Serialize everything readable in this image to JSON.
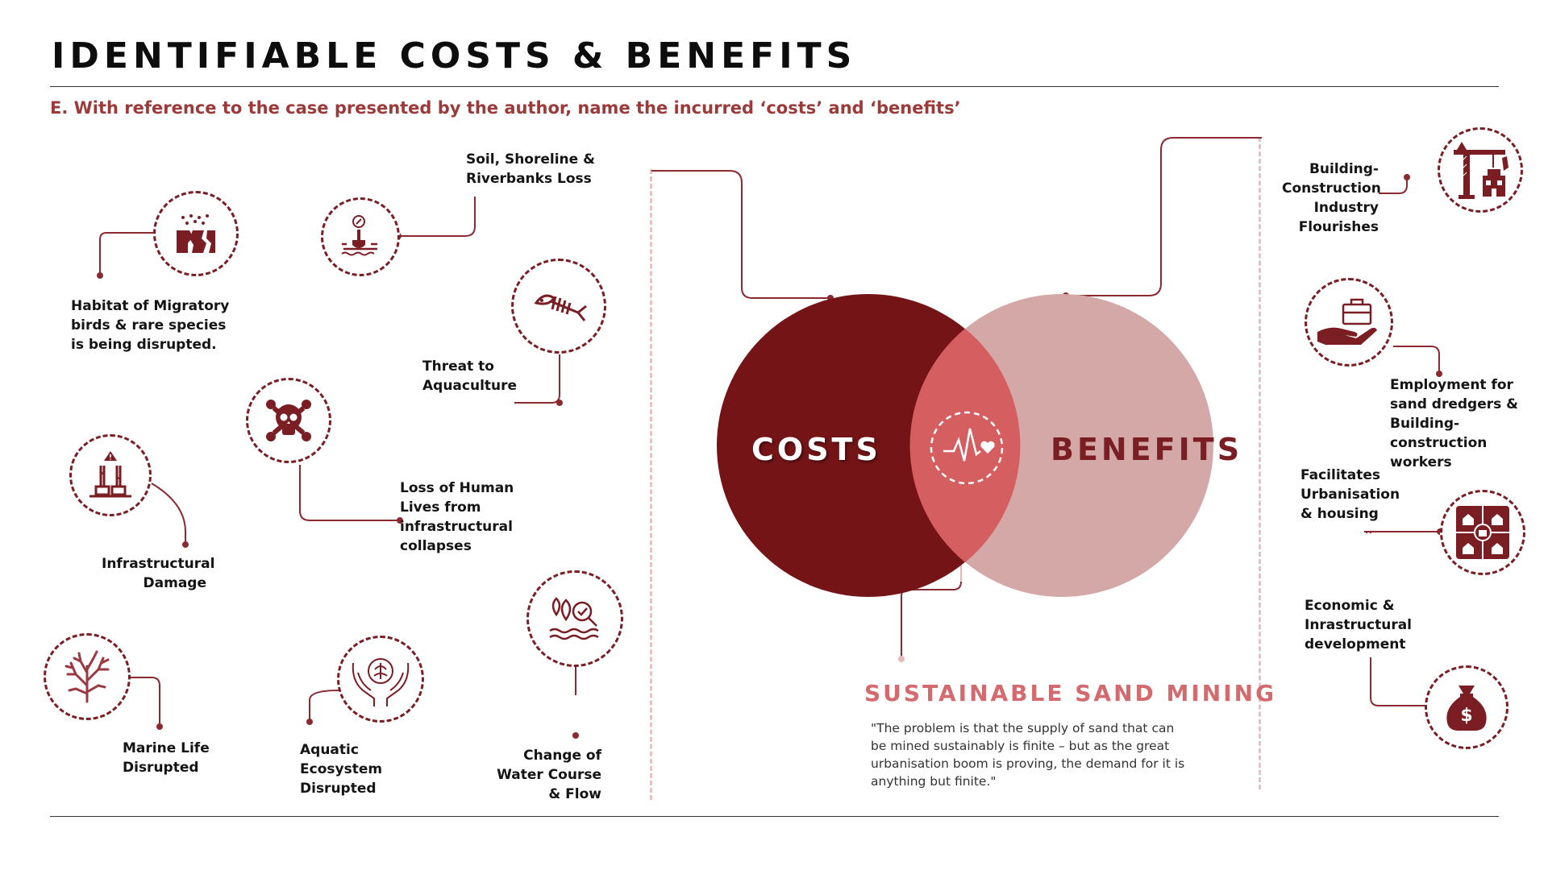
{
  "header": {
    "title": "IDENTIFIABLE COSTS & BENEFITS",
    "subtitle": "E. With reference to the case presented by the author, name the incurred ‘costs’ and ‘benefits’"
  },
  "venn": {
    "costs_label": "COSTS",
    "benefits_label": "BENEFITS",
    "intersection_title": "SUSTAINABLE SAND MINING",
    "quote": "\"The problem is that the supply of sand that can be mined sustainably is finite – but as the great urbanisation boom is proving, the demand for it is anything but finite.\""
  },
  "costs": {
    "soil": "Soil, Shoreline & Riverbanks Loss",
    "habitat": "Habitat of Migratory birds & rare species is being disrupted.",
    "aquaculture": "Threat to Aquaculture",
    "human": "Loss of Human Lives from infrastructural collapses",
    "infra": "Infrastructural Damage",
    "water": "Change of Water Course & Flow",
    "marine": "Marine Life Disrupted",
    "aquatic": "Aquatic Ecosystem Disrupted"
  },
  "benefits": {
    "building": "Building-Construction Industry Flourishes",
    "employment": "Employment for sand dredgers & Building-construction workers",
    "urban": "Facilitates Urbanisation & housing",
    "economic": "Economic & Inrastructural development"
  },
  "colors": {
    "costs": "#741417",
    "benefits": "#d5a8a8",
    "overlap": "#d55e60",
    "accent": "#9c3a3a",
    "icon": "#7a1e24"
  },
  "icons": {
    "soil": "shovel-soil-icon",
    "habitat": "cracked-ground-icon",
    "aquaculture": "fish-bone-icon",
    "human": "skull-crossbones-icon",
    "infra": "pillar-warning-icon",
    "water": "water-search-icon",
    "marine": "coral-icon",
    "aquatic": "hands-ecosystem-icon",
    "building": "construction-crane-icon",
    "employment": "hand-briefcase-icon",
    "urban": "houses-grid-icon",
    "economic": "money-bag-icon",
    "heart": "heartbeat-icon"
  }
}
